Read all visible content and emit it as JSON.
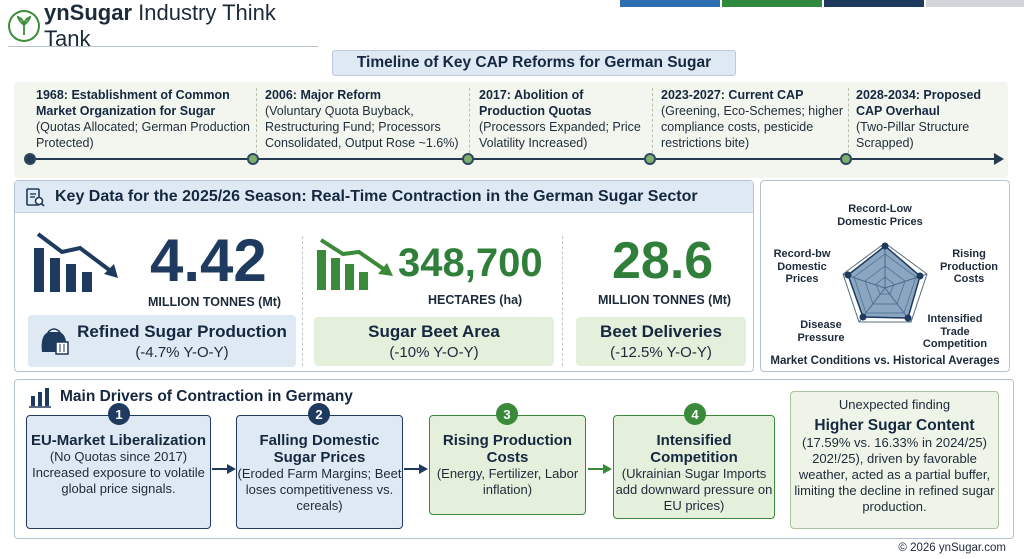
{
  "colors": {
    "navy": "#1f3a5f",
    "green": "#3a8a3a",
    "lightblue": "#dfe9f4",
    "lightgreen": "#e4f0dc"
  },
  "header": {
    "brand_bold": "ynSugar",
    "brand_rest": " Industry Think Tank"
  },
  "timeline": {
    "title": "Timeline of Key CAP Reforms for German Sugar",
    "items": [
      {
        "head": "1968: Establishment of Common Market Organization for Sugar",
        "detail": "(Quotas Allocated; German Production Protected)"
      },
      {
        "head": "2006: Major Reform",
        "detail": "(Voluntary Quota Buyback, Restructuring Fund; Processors Consolidated, Output Rose ~1.6%)"
      },
      {
        "head": "2017: Abolition of Production Quotas",
        "detail": "(Processors Expanded; Price Volatility Increased)"
      },
      {
        "head": "2023-2027: Current CAP",
        "detail": "(Greening, Eco-Schemes; higher compliance costs, pesticide restrictions bite)"
      },
      {
        "head": "2028-2034: Proposed CAP Overhaul",
        "detail": "(Two-Pillar Structure Scrapped)"
      }
    ]
  },
  "key_data": {
    "title": "Key Data for the 2025/26 Season: Real-Time Contraction in the German Sugar Sector",
    "stats": [
      {
        "value": "4.42",
        "unit": "MILLION TONNES (Mt)",
        "label": "Refined Sugar Production",
        "change": "(-4.7% Y-O-Y)"
      },
      {
        "value": "348,700",
        "unit": "HECTARES (ha)",
        "label": "Sugar Beet Area",
        "change": "(-10% Y-O-Y)"
      },
      {
        "value": "28.6",
        "unit": "MILLION TONNES (Mt)",
        "label": "Beet Deliveries",
        "change": "(-12.5% Y-O-Y)"
      }
    ]
  },
  "radar": {
    "axes": [
      "Record-Low Domestic Prices",
      "Rising Production Costs",
      "Intensified Trade Competition",
      "Disease Pressure",
      "Record-bw Domestic Prices"
    ],
    "caption": "Market Conditions vs. Historical Averages"
  },
  "drivers": {
    "title": "Main Drivers of Contraction in Germany",
    "items": [
      {
        "num": "1",
        "title": "EU-Market Liberalization",
        "detail": "(No Quotas since 2017) Increased exposure to volatile global price signals."
      },
      {
        "num": "2",
        "title": "Falling Domestic Sugar Prices",
        "detail": "(Eroded Farm Margins; Beet loses competitiveness vs. cereals)"
      },
      {
        "num": "3",
        "title": "Rising Production Costs",
        "detail": "(Energy, Fertilizer, Labor inflation)"
      },
      {
        "num": "4",
        "title": "Intensified Competition",
        "detail": "(Ukrainian Sugar Imports add downward pressure on EU prices)"
      }
    ],
    "finding": {
      "sub": "Unexpected finding",
      "title": "Higher Sugar Content",
      "detail": "(17.59% vs. 16.33% in 2024/25) 202!/25), driven by favorable weather, acted as a partial buffer, limiting the decline in refined sugar production."
    }
  },
  "footer": "© 2026 ynSugar.com"
}
